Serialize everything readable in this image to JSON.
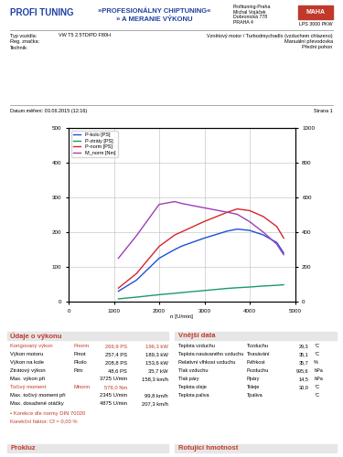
{
  "header": {
    "logo": "PROFI TUNING",
    "title_lines": [
      "»PROFESIONÁLNY CHIPTUNING«",
      "» A MERANIE VÝKONU"
    ],
    "address": [
      "Profituning-Praha",
      "Michal Vojáček",
      "Dobronická 778",
      "PRAHA 4"
    ],
    "brand": "MAHA",
    "device": "LPS 3000 PKW"
  },
  "vehicle": {
    "left": [
      [
        "Typ vozidla:",
        "VW T5 2.5TDIPD F80H"
      ],
      [
        "Reg. značka:",
        ""
      ],
      [
        "Technik:",
        ""
      ]
    ],
    "right": [
      "Vznětový motor / Turbodmychadlo (vzduchem chlazeno)",
      "Manuální převodovka",
      "Přední pohon"
    ]
  },
  "date": "Datum měření: 03.06.2015 (12:16)",
  "page": "Strana 1",
  "chart_data": {
    "type": "line",
    "x_label": "n [U/min]",
    "x": [
      1100,
      1500,
      2000,
      2345,
      2500,
      3000,
      3500,
      3725,
      4000,
      4300,
      4600,
      4750
    ],
    "xlim": [
      0,
      5000
    ],
    "xticks": [
      0,
      1000,
      2000,
      3000,
      4000,
      5000
    ],
    "ylim": [
      0,
      500
    ],
    "yticks": [
      0,
      100,
      200,
      300,
      400,
      500
    ],
    "y2lim": [
      0,
      1000
    ],
    "y2ticks": [
      0,
      200,
      400,
      600,
      800,
      1000
    ],
    "grid": true,
    "legend": "upper left",
    "series": [
      {
        "name": "P-kolo [PS]",
        "color": "#1f4fd8",
        "values": [
          30,
          62,
          125,
          150,
          160,
          183,
          203,
          208.8,
          205,
          192,
          170,
          140
        ]
      },
      {
        "name": "P-ztráty [PS]",
        "color": "#1a9a6c",
        "values": [
          8,
          13,
          20,
          24,
          26,
          32,
          38,
          40,
          42,
          45,
          47,
          48.6
        ]
      },
      {
        "name": "P-norm [PS]",
        "color": "#d62728",
        "values": [
          39,
          81,
          159,
          192,
          201,
          231,
          257,
          266.9,
          262,
          245,
          216,
          183
        ]
      },
      {
        "name": "M_norm [Nm]",
        "color": "#9b3fb5",
        "axis": "y2",
        "values": [
          250,
          380,
          560,
          576,
          565,
          540,
          515,
          503,
          460,
          400,
          330,
          270
        ]
      }
    ]
  },
  "performance": {
    "title": "Údaje o výkonu",
    "rows": [
      [
        "Korigovaný výkon",
        "Pnorm",
        "266,9 PS",
        "196,3 kW"
      ],
      [
        "Výkon motoru",
        "Pmot",
        "257,4 PS",
        "189,3 kW"
      ],
      [
        "Výkon na kole",
        "Pkolo",
        "208,8 PS",
        "153,6 kW"
      ],
      [
        "Ztrátový výkon",
        "Pztr",
        "48,6 PS",
        "35,7 kW"
      ],
      [
        "Max. výkon při",
        "",
        "3725 U/min",
        "158,3 km/h"
      ],
      [
        "Točivý moment",
        "Mnorm",
        "576,0 Nm",
        ""
      ],
      [
        "Max. točivý moment při",
        "",
        "2345 U/min",
        "99,8 km/h"
      ],
      [
        "Max. dosažené otáčky",
        "",
        "4875 U/min",
        "207,3 km/h"
      ]
    ],
    "notes": [
      "• Korekce dle normy DIN 70020",
      "Korekční faktor: Cf = 0,00 %"
    ]
  },
  "external": {
    "title": "Vnější data",
    "rows": [
      [
        "Teplota vzduchu",
        "Tvzduchu",
        "29,3",
        "°C"
      ],
      [
        "Teplota nasávaného vzduchu",
        "Tnasávání",
        "35,1",
        "°C"
      ],
      [
        "Relativní vlhkost vzduchu",
        "Fvlhkost",
        "35,7",
        "%"
      ],
      [
        "Tlak vzduchu",
        "Pvzduchu",
        "995,6",
        "hPa"
      ],
      [
        "Tlak páry",
        "Ppáry",
        "14,5",
        "hPa"
      ],
      [
        "Teplota oleje",
        "Toleje",
        "30,0",
        "°C"
      ],
      [
        "Teplota paliva",
        "Tpaliva",
        "",
        "°C"
      ]
    ]
  },
  "footer": [
    "Prokluz",
    "Rotující hmotnost"
  ]
}
